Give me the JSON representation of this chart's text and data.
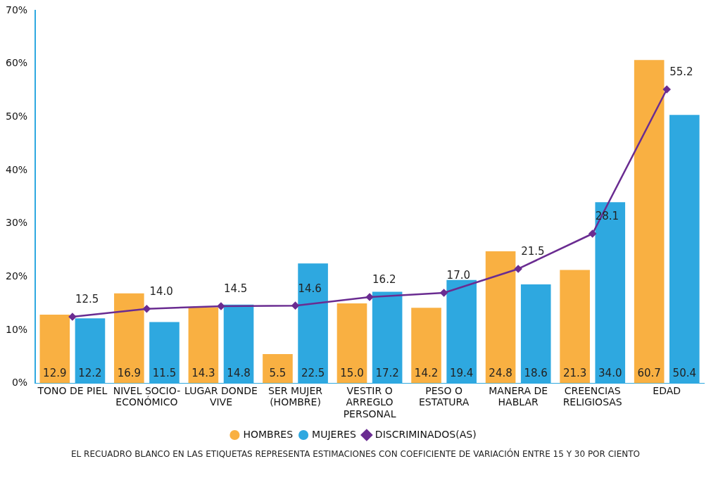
{
  "chart_data": {
    "type": "bar",
    "categories": [
      "TONO DE PIEL",
      "NIVEL SOCIO-ECONÓMICO",
      "LUGAR DONDE VIVE",
      "SER MUJER (HOMBRE)",
      "VESTIR O ARREGLO PERSONAL",
      "PESO O ESTATURA",
      "MANERA DE HABLAR",
      "CREENCIAS RELIGIOSAS",
      "EDAD"
    ],
    "series": [
      {
        "name": "HOMBRES",
        "color": "#f9b042",
        "values": [
          12.9,
          16.9,
          14.3,
          5.5,
          15.0,
          14.2,
          24.8,
          21.3,
          60.7
        ],
        "value_labels": [
          "12.9",
          "16.9",
          "14.3",
          "5.5",
          "15.0",
          "14.2",
          "24.8",
          "21.3",
          "60.7"
        ]
      },
      {
        "name": "MUJERES",
        "color": "#2ea8e0",
        "values": [
          12.2,
          11.5,
          14.8,
          22.5,
          17.2,
          19.4,
          18.6,
          34.0,
          50.4
        ],
        "value_labels": [
          "12.2",
          "11.5",
          "14.8",
          "22.5",
          "17.2",
          "19.4",
          "18.6",
          "34.0",
          "50.4"
        ]
      },
      {
        "name": "DISCRIMINADOS(AS)",
        "type": "line",
        "color": "#6a2c91",
        "values": [
          12.5,
          14.0,
          14.5,
          14.6,
          16.2,
          17.0,
          21.5,
          28.1,
          55.2
        ],
        "value_labels": [
          "12.5",
          "14.0",
          "14.5",
          "14.6",
          "16.2",
          "17.0",
          "21.5",
          "28.1",
          "55.2"
        ]
      }
    ],
    "ylim": [
      0,
      70
    ],
    "yticks": [
      {
        "value": 0,
        "label": "0%"
      },
      {
        "value": 10,
        "label": "10%"
      },
      {
        "value": 20,
        "label": "20%"
      },
      {
        "value": 30,
        "label": "30%"
      },
      {
        "value": 40,
        "label": "40%"
      },
      {
        "value": 50,
        "label": "50%"
      },
      {
        "value": 60,
        "label": "60%"
      },
      {
        "value": 70,
        "label": "70%"
      }
    ],
    "grid": false,
    "legend": "bottom",
    "marker": "diamond",
    "line_style": "solid",
    "annotations": [
      "EL RECUADRO BLANCO EN LAS ETIQUETAS REPRESENTA ESTIMACIONES CON COEFICIENTE DE VARIACIÓN ENTRE 15 Y 30 POR CIENTO"
    ]
  }
}
